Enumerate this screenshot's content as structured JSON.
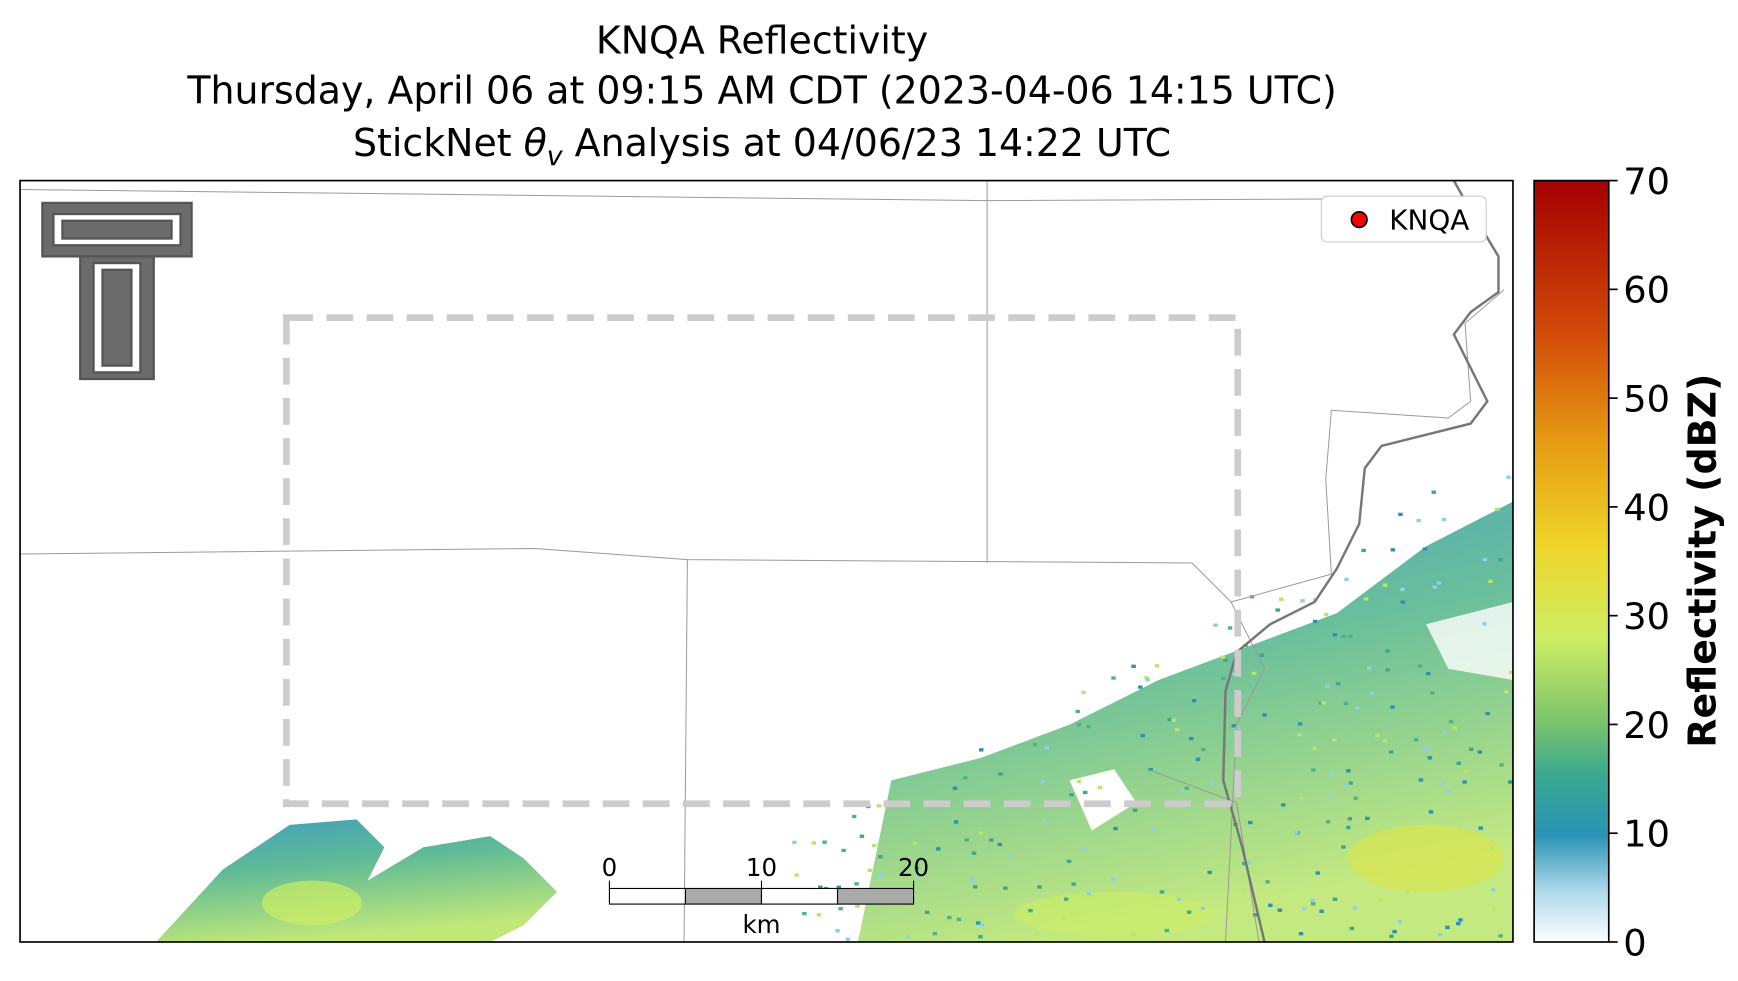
{
  "map": {
    "title": {
      "line1": "KNQA Reflectivity",
      "line2": "Thursday, April 06 at 09:15 AM CDT (2023-04-06 14:15 UTC)",
      "line3_prefix": "StickNet ",
      "line3_symbol": "θ",
      "line3_subscript": "v",
      "line3_suffix": " Analysis at 04/06/23 14:22 UTC"
    },
    "legend": {
      "label": "KNQA",
      "color": "#ff0000",
      "corner": "upper right"
    },
    "colorbar": {
      "label": "Reflectivity (dBZ)",
      "lim": [
        0,
        70
      ],
      "ticks": [
        0,
        10,
        20,
        30,
        40,
        50,
        60,
        70
      ]
    },
    "scale_bar": {
      "lim": [
        0,
        20
      ],
      "ticks": [
        0,
        10,
        20
      ],
      "unit": "km"
    }
  }
}
